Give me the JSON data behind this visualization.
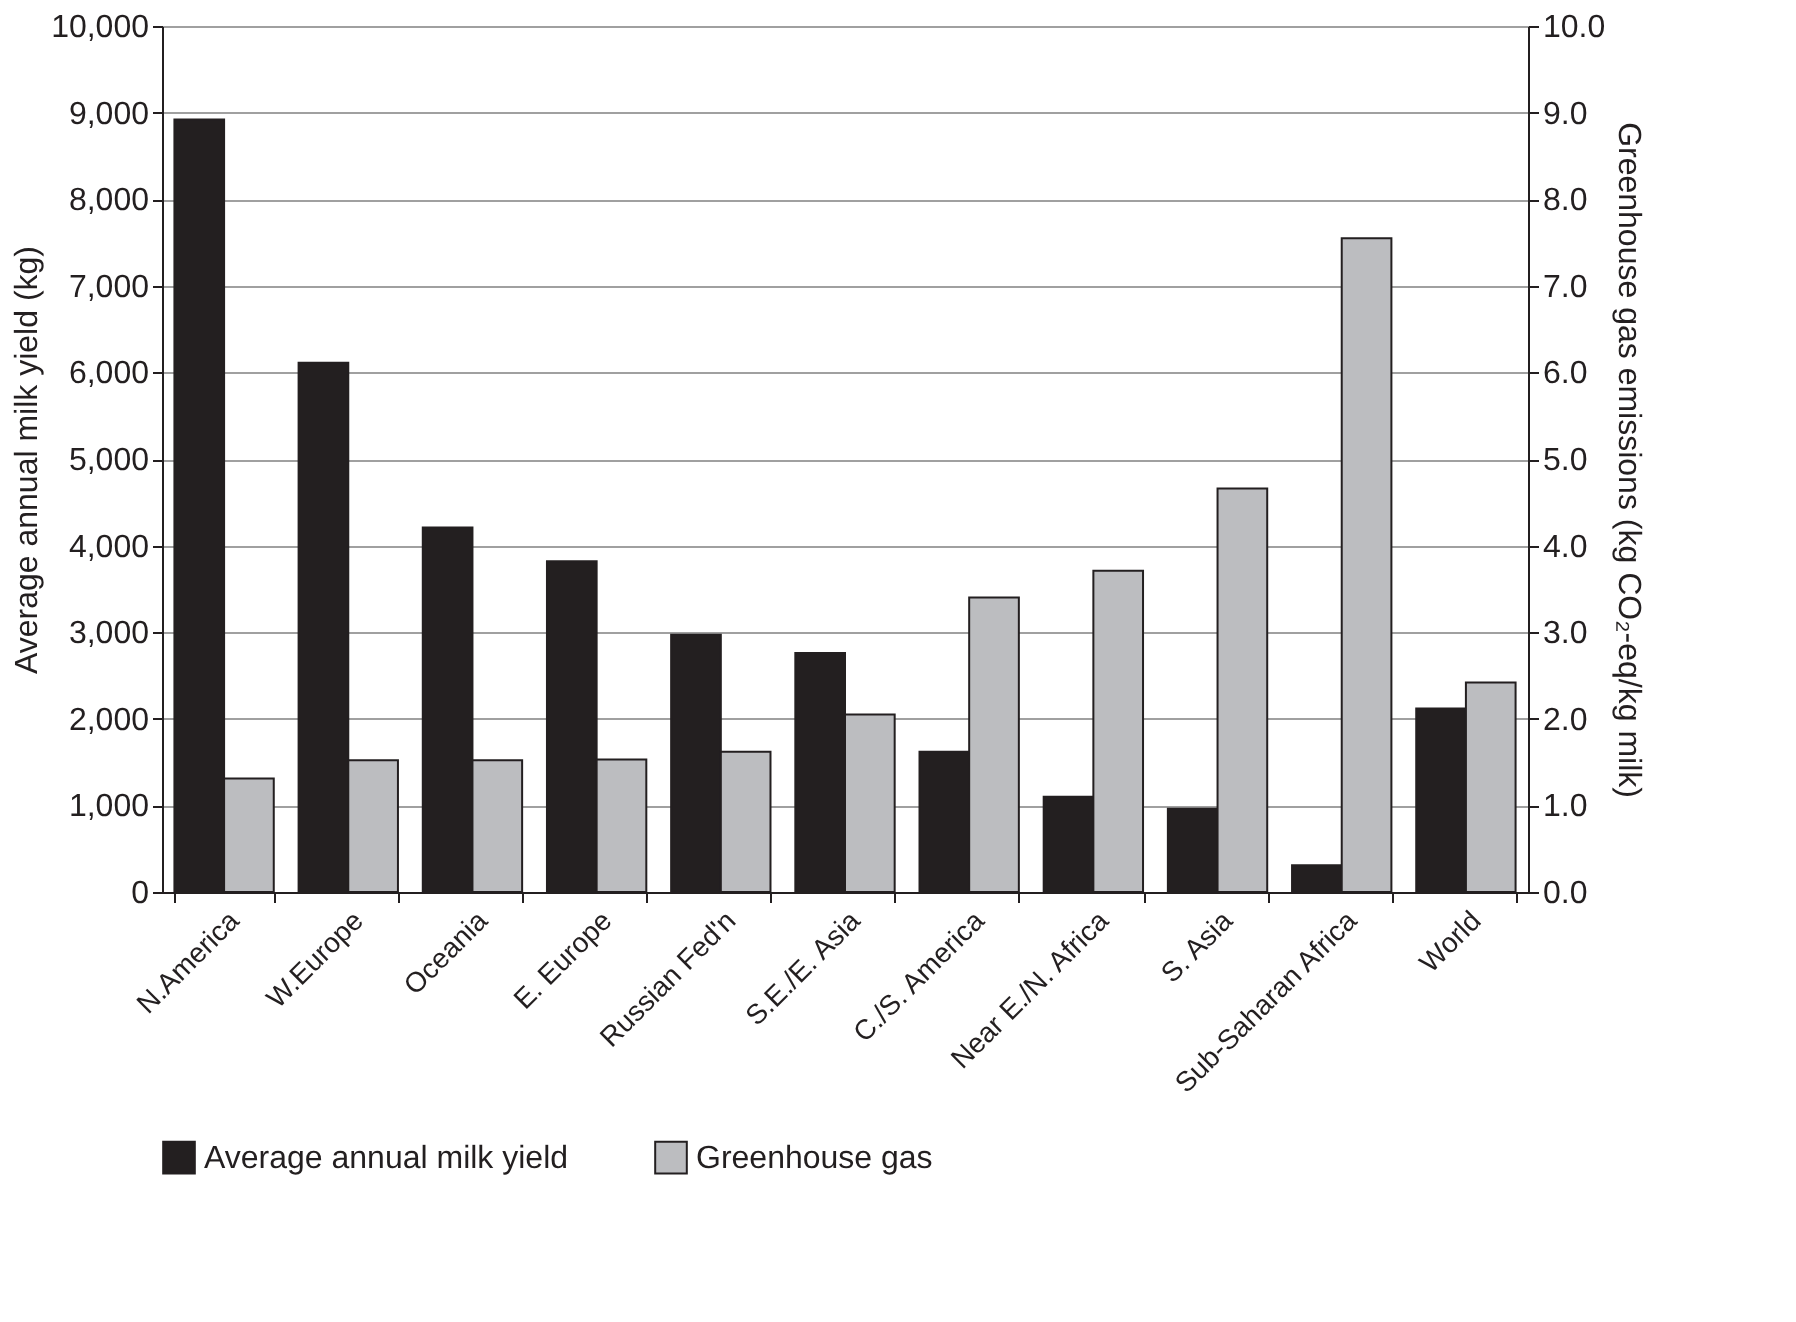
{
  "chart_data": {
    "type": "bar",
    "categories": [
      "N.America",
      "W.Europe",
      "Oceania",
      "E. Europe",
      "Russian Fed'n",
      "S.E./E. Asia",
      "C./S. America",
      "Near E./N. Africa",
      "S. Asia",
      "Sub-Saharan Africa",
      "World"
    ],
    "ylabel": "Average annual milk yield (kg)",
    "y2label": "Greenhouse gas emissions (kg CO₂-eq/kg milk)",
    "ylim": [
      0,
      10000
    ],
    "yticks": [
      0,
      {
        "value": 1000,
        "label": "1,000"
      },
      {
        "value": 2000,
        "label": "2,000"
      },
      {
        "value": 3000,
        "label": "3,000"
      },
      {
        "value": 4000,
        "label": "4,000"
      },
      {
        "value": 5000,
        "label": "5,000"
      },
      {
        "value": 6000,
        "label": "6,000"
      },
      {
        "value": 7000,
        "label": "7,000"
      },
      {
        "value": 8000,
        "label": "8,000"
      },
      {
        "value": 9000,
        "label": "9,000"
      },
      {
        "value": 10000,
        "label": "10,000"
      }
    ],
    "y2lim": [
      0,
      10
    ],
    "y2ticks": [
      {
        "value": 0,
        "label": "0.0"
      },
      {
        "value": 1,
        "label": "1.0"
      },
      {
        "value": 2,
        "label": "2.0"
      },
      {
        "value": 3,
        "label": "3.0"
      },
      {
        "value": 4,
        "label": "4.0"
      },
      {
        "value": 5,
        "label": "5.0"
      },
      {
        "value": 6,
        "label": "6.0"
      },
      {
        "value": 7,
        "label": "7.0"
      },
      {
        "value": 8,
        "label": "8.0"
      },
      {
        "value": 9,
        "label": "9.0"
      },
      {
        "value": 10,
        "label": "10.0"
      }
    ],
    "grid": "y",
    "legend": "bottom",
    "series": [
      {
        "name": "Average annual milk yield",
        "color": "#231f20",
        "values": [
          8920,
          6110,
          4210,
          3820,
          2970,
          2760,
          1620,
          1100,
          960,
          310,
          2120
        ]
      },
      {
        "name": "Greenhouse gas",
        "color": "#bcbdc0",
        "axis": "y2",
        "values": [
          1.31,
          1.52,
          1.52,
          1.53,
          1.62,
          2.05,
          3.4,
          3.71,
          4.66,
          7.55,
          2.42
        ]
      }
    ]
  }
}
